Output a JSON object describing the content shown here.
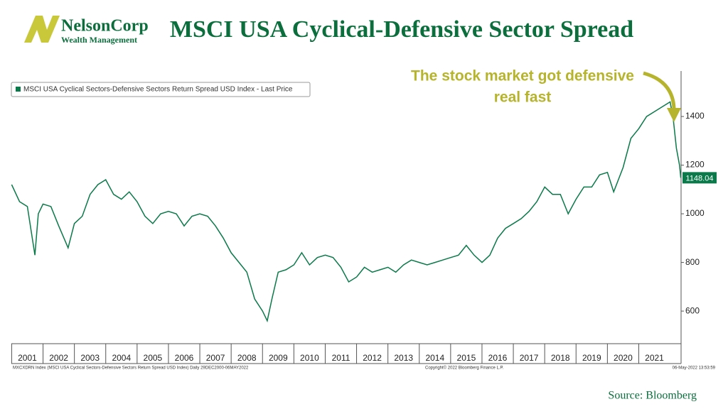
{
  "header": {
    "logo_name": "NelsonCorp",
    "logo_sub": "Wealth Management",
    "title": "MSCI USA Cyclical-Defensive Sector Spread"
  },
  "chart_data": {
    "type": "line",
    "annotation": [
      "The stock market got defensive",
      "real fast"
    ],
    "last_price_label": "1148.04",
    "color": "#0b7a4b",
    "x": [
      2001.0,
      2001.25,
      2001.5,
      2001.74,
      2001.85,
      2002.0,
      2002.25,
      2002.5,
      2002.8,
      2003.0,
      2003.25,
      2003.5,
      2003.75,
      2004.0,
      2004.25,
      2004.5,
      2004.75,
      2005.0,
      2005.25,
      2005.5,
      2005.75,
      2006.0,
      2006.25,
      2006.5,
      2006.75,
      2007.0,
      2007.25,
      2007.5,
      2007.75,
      2008.0,
      2008.25,
      2008.5,
      2008.75,
      2009.0,
      2009.15,
      2009.3,
      2009.5,
      2009.75,
      2010.0,
      2010.25,
      2010.5,
      2010.75,
      2011.0,
      2011.25,
      2011.5,
      2011.75,
      2012.0,
      2012.25,
      2012.5,
      2012.75,
      2013.0,
      2013.25,
      2013.5,
      2013.75,
      2014.0,
      2014.25,
      2014.5,
      2014.75,
      2015.0,
      2015.25,
      2015.5,
      2015.75,
      2016.0,
      2016.25,
      2016.5,
      2016.75,
      2017.0,
      2017.25,
      2017.5,
      2017.75,
      2018.0,
      2018.25,
      2018.5,
      2018.75,
      2019.0,
      2019.25,
      2019.5,
      2019.75,
      2020.0,
      2020.2,
      2020.5,
      2020.75,
      2021.0,
      2021.25,
      2021.5,
      2021.75,
      2022.0,
      2022.1,
      2022.2,
      2022.3,
      2022.34
    ],
    "series": [
      {
        "name": "MSCI USA Cyclical Sectors-Defensive Sectors Return Spread USD Index - Last Price",
        "color": "#0b7a4b",
        "values": [
          1120,
          1050,
          1030,
          830,
          1000,
          1040,
          1030,
          950,
          860,
          960,
          990,
          1080,
          1120,
          1140,
          1080,
          1060,
          1090,
          1050,
          990,
          960,
          1000,
          1010,
          1000,
          950,
          990,
          1000,
          990,
          950,
          900,
          840,
          800,
          760,
          650,
          600,
          560,
          650,
          760,
          770,
          790,
          840,
          790,
          820,
          830,
          820,
          780,
          720,
          740,
          780,
          760,
          770,
          780,
          760,
          790,
          810,
          800,
          790,
          800,
          810,
          820,
          830,
          870,
          830,
          800,
          830,
          900,
          940,
          960,
          980,
          1010,
          1050,
          1110,
          1080,
          1080,
          1000,
          1060,
          1110,
          1110,
          1160,
          1170,
          1090,
          1190,
          1310,
          1350,
          1400,
          1420,
          1440,
          1460,
          1390,
          1270,
          1200,
          1148.04
        ]
      }
    ],
    "xlim": [
      2000.99,
      2022.35
    ],
    "xticks": [
      {
        "value": 2001,
        "label": "2001"
      },
      {
        "value": 2002,
        "label": "2002"
      },
      {
        "value": 2003,
        "label": "2003"
      },
      {
        "value": 2004,
        "label": "2004"
      },
      {
        "value": 2005,
        "label": "2005"
      },
      {
        "value": 2006,
        "label": "2006"
      },
      {
        "value": 2007,
        "label": "2007"
      },
      {
        "value": 2008,
        "label": "2008"
      },
      {
        "value": 2009,
        "label": "2009"
      },
      {
        "value": 2010,
        "label": "2010"
      },
      {
        "value": 2011,
        "label": "2011"
      },
      {
        "value": 2012,
        "label": "2012"
      },
      {
        "value": 2013,
        "label": "2013"
      },
      {
        "value": 2014,
        "label": "2014"
      },
      {
        "value": 2015,
        "label": "2015"
      },
      {
        "value": 2016,
        "label": "2016"
      },
      {
        "value": 2017,
        "label": "2017"
      },
      {
        "value": 2018,
        "label": "2018"
      },
      {
        "value": 2019,
        "label": "2019"
      },
      {
        "value": 2020,
        "label": "2020"
      },
      {
        "value": 2021,
        "label": "2021"
      }
    ],
    "ylim": [
      466,
      1587
    ],
    "yticks": [
      600,
      800,
      1000,
      1200,
      1400
    ],
    "legend": "top-left"
  },
  "footer": {
    "index_info": "MXCXDRN Index (MSCI USA Cyclical Sectors-Defensive Sectors Return Spread USD Index)  Daily 29DEC2000-06MAY2022",
    "copyright": "Copyright© 2022 Bloomberg Finance L.P.",
    "timestamp": "06-May-2022 13:53:59",
    "source": "Source: Bloomberg"
  }
}
